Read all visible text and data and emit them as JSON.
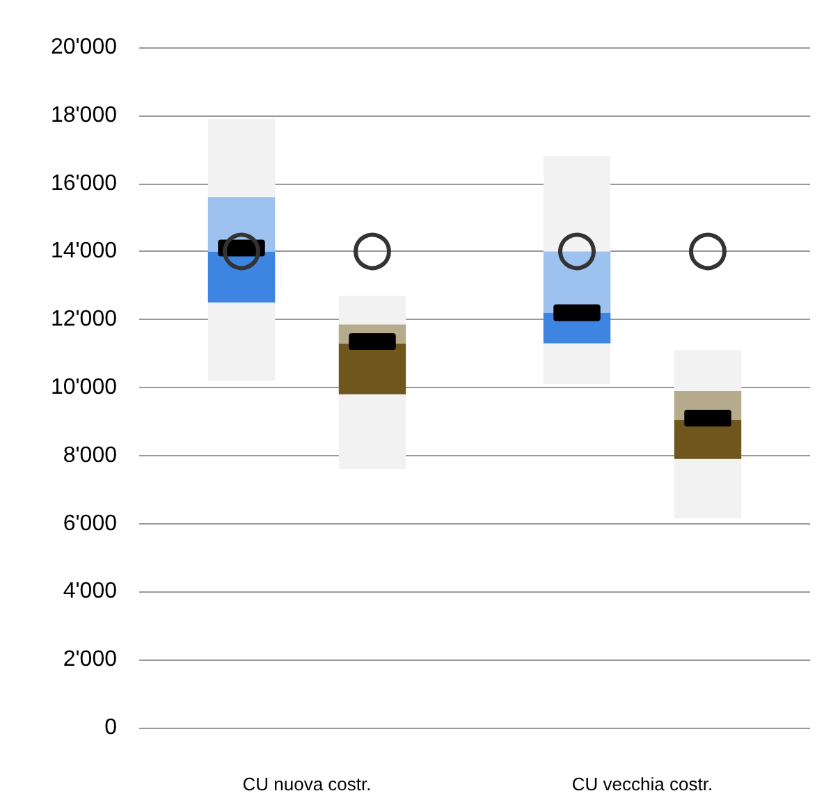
{
  "chart_data": {
    "type": "box",
    "categories": [
      "CU nuova costr.",
      "CU vecchia costr."
    ],
    "series": [
      {
        "color": "#3d85e0",
        "boxes": [
          {
            "low": 10200,
            "q1": 12500,
            "median": 14000,
            "q3": 15600,
            "high": 17900,
            "mean": 14100
          },
          {
            "low": 10100,
            "q1": 11300,
            "median": 12200,
            "q3": 14000,
            "high": 16800,
            "mean": 12200
          }
        ]
      },
      {
        "color": "#6e561d",
        "boxes": [
          {
            "low": 7600,
            "q1": 9800,
            "median": 11300,
            "q3": 11850,
            "high": 12700,
            "mean": 11350
          },
          {
            "low": 6150,
            "q1": 7900,
            "median": 9050,
            "q3": 9900,
            "high": 11100,
            "mean": 9100
          }
        ]
      },
      {
        "type": "scatter",
        "color": "#333333",
        "values": [
          14000,
          14000
        ]
      },
      {
        "type": "scatter",
        "color": "#333333",
        "values": [
          14000,
          14000
        ]
      }
    ],
    "ylim": [
      0,
      20000
    ],
    "yticks": [
      {
        "value": 0,
        "label": "0"
      },
      {
        "value": 2000,
        "label": "2'000"
      },
      {
        "value": 4000,
        "label": "4'000"
      },
      {
        "value": 6000,
        "label": "6'000"
      },
      {
        "value": 8000,
        "label": "8'000"
      },
      {
        "value": 10000,
        "label": "10'000"
      },
      {
        "value": 12000,
        "label": "12'000"
      },
      {
        "value": 14000,
        "label": "14'000"
      },
      {
        "value": 16000,
        "label": "16'000"
      },
      {
        "value": 18000,
        "label": "18'000"
      },
      {
        "value": 20000,
        "label": "20'000"
      }
    ],
    "grid": "y",
    "marker": "circle"
  }
}
